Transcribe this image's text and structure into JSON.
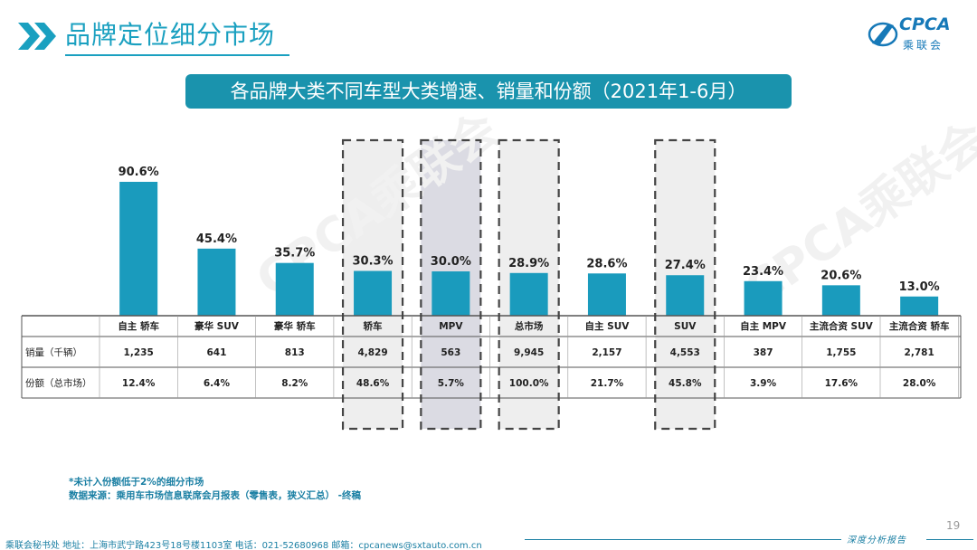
{
  "header": {
    "title": "品牌定位细分市场",
    "logo_text": "CPCA",
    "logo_sub": "乘联会"
  },
  "banner": {
    "title": "各品牌大类不同车型大类增速、销量和份额（2021年1-6月）"
  },
  "colors": {
    "accent": "#1aa0c0",
    "bar": "#1a9bbd",
    "banner": "#1a93ad",
    "highlight_fill": "#eeeeee",
    "mpv_fill": "#dbdbe3"
  },
  "chart_data": {
    "type": "bar",
    "categories": [
      "自主 轿车",
      "豪华 SUV",
      "豪华 轿车",
      "轿车",
      "MPV",
      "总市场",
      "自主 SUV",
      "SUV",
      "自主 MPV",
      "主流合资 SUV",
      "主流合资 轿车"
    ],
    "values": [
      90.6,
      45.4,
      35.7,
      30.3,
      30.0,
      28.9,
      28.6,
      27.4,
      23.4,
      20.6,
      13.0
    ],
    "value_labels": [
      "90.6%",
      "45.4%",
      "35.7%",
      "30.3%",
      "30.0%",
      "28.9%",
      "28.6%",
      "27.4%",
      "23.4%",
      "20.6%",
      "13.0%"
    ],
    "unit": "%",
    "highlighted": [
      "轿车",
      "MPV",
      "总市场",
      "SUV"
    ],
    "table": {
      "rows": [
        {
          "label": "销量（千辆）",
          "cells": [
            "1,235",
            "641",
            "813",
            "4,829",
            "563",
            "9,945",
            "2,157",
            "4,553",
            "387",
            "1,755",
            "2,781"
          ]
        },
        {
          "label": "份额（总市场）",
          "cells": [
            "12.4%",
            "6.4%",
            "8.2%",
            "48.6%",
            "5.7%",
            "100.0%",
            "21.7%",
            "45.8%",
            "3.9%",
            "17.6%",
            "28.0%"
          ]
        }
      ]
    }
  },
  "notes": {
    "line1": "*未计入份额低于2%的细分市场",
    "line2": "数据来源：乘用车市场信息联席会月报表（零售表，狭义汇总） -终稿"
  },
  "footer": {
    "address": "乘联会秘书处   地址：上海市武宁路423号18号楼1103室   电话：021-52680968   邮箱：cpcanews@sxtauto.com.cn",
    "brand": "深度分析报告",
    "page_number": "19"
  }
}
